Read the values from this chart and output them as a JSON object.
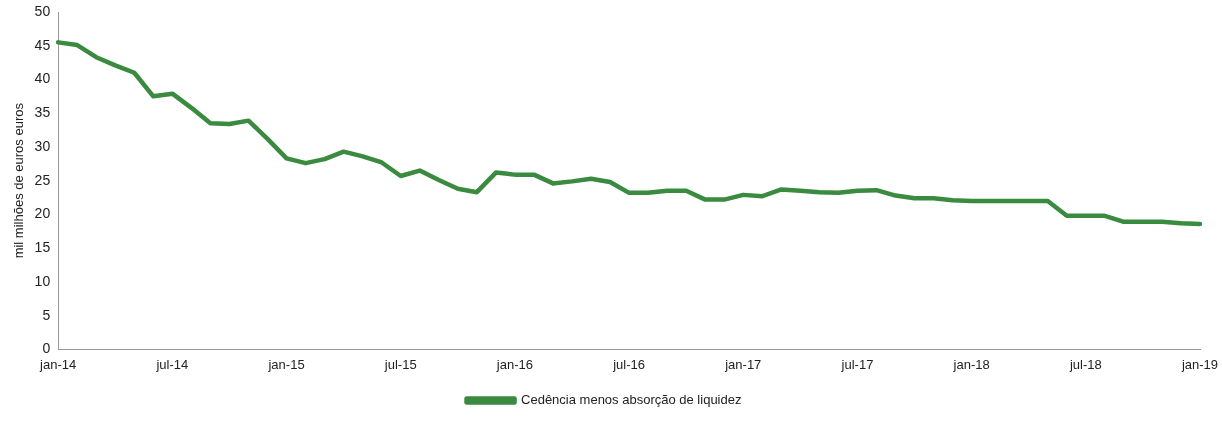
{
  "chart_data": {
    "type": "line",
    "ylabel": "mil milhões de euros euros",
    "categories": [
      "jan-14",
      null,
      null,
      null,
      null,
      null,
      "jul-14",
      null,
      null,
      null,
      null,
      null,
      "jan-15",
      null,
      null,
      null,
      null,
      null,
      "jul-15",
      null,
      null,
      null,
      null,
      null,
      "jan-16",
      null,
      null,
      null,
      null,
      null,
      "jul-16",
      null,
      null,
      null,
      null,
      null,
      "jan-17",
      null,
      null,
      null,
      null,
      null,
      "jul-17",
      null,
      null,
      null,
      null,
      null,
      "jan-18",
      null,
      null,
      null,
      null,
      null,
      "jul-18",
      null,
      null,
      null,
      null,
      null,
      "jan-19"
    ],
    "series": [
      {
        "name": "Cedência menos absorção de liquidez",
        "color": "#3a8a3f",
        "values": [
          45.5,
          45.1,
          43.3,
          42.1,
          41.0,
          37.5,
          37.9,
          35.8,
          33.5,
          33.4,
          33.9,
          31.2,
          28.3,
          27.6,
          28.2,
          29.3,
          28.6,
          27.7,
          25.7,
          26.5,
          25.1,
          23.8,
          23.3,
          26.2,
          25.9,
          25.9,
          24.6,
          24.9,
          25.3,
          24.8,
          23.2,
          23.2,
          23.5,
          23.5,
          22.2,
          22.2,
          22.9,
          22.7,
          23.7,
          23.5,
          23.3,
          23.2,
          23.5,
          23.6,
          22.8,
          22.4,
          22.4,
          22.1,
          22.0,
          22.0,
          22.0,
          22.0,
          22.0,
          19.8,
          19.8,
          19.8,
          18.9,
          18.9,
          18.9,
          18.7,
          18.6
        ]
      }
    ],
    "ylim": [
      0,
      50
    ],
    "yticks": [
      0,
      5,
      10,
      15,
      20,
      25,
      30,
      35,
      40,
      45,
      50
    ],
    "grid": false,
    "legend": "bottom",
    "marker": "none",
    "line_style": "solid"
  }
}
